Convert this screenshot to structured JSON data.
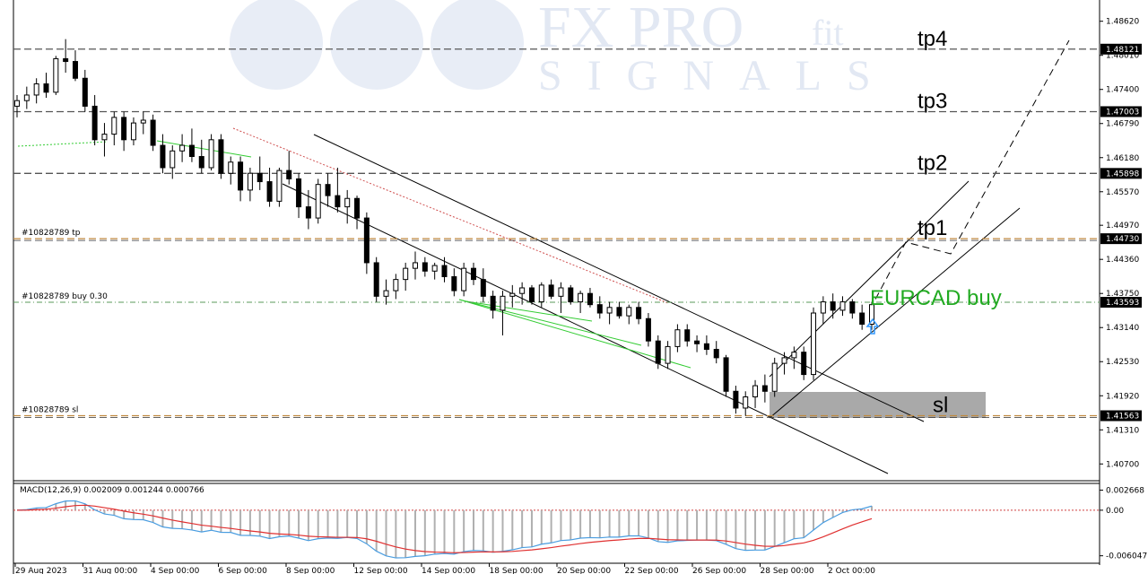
{
  "watermark": {
    "line1": "FX PRO",
    "line1b": "fit",
    "line2": "SIGNALS"
  },
  "chart_data": [
    {
      "type": "candlestick",
      "symbol": "EURCAD",
      "annotation": "EURCAD buy",
      "ylim": [
        1.404,
        1.49
      ],
      "y_ticks": [
        "1.48620",
        "1.48010",
        "1.47400",
        "1.46790",
        "1.46180",
        "1.45570",
        "1.44970",
        "1.44360",
        "1.43750",
        "1.43140",
        "1.42530",
        "1.41920",
        "1.41310",
        "1.40700"
      ],
      "x_ticks": [
        "29 Aug 2023",
        "31 Aug 00:00",
        "4 Sep 00:00",
        "6 Sep 00:00",
        "8 Sep 00:00",
        "12 Sep 00:00",
        "14 Sep 00:00",
        "18 Sep 00:00",
        "20 Sep 00:00",
        "22 Sep 00:00",
        "26 Sep 00:00",
        "28 Sep 00:00",
        "2 Oct 00:00"
      ],
      "levels": [
        {
          "label": "tp4",
          "value": 1.48121,
          "value_text": "1.48121",
          "order_text": ""
        },
        {
          "label": "tp3",
          "value": 1.47003,
          "value_text": "1.47003",
          "order_text": ""
        },
        {
          "label": "tp2",
          "value": 1.45898,
          "value_text": "1.45898",
          "order_text": ""
        },
        {
          "label": "tp1",
          "value": 1.4473,
          "value_text": "1.44730",
          "order_text": "#10828789 tp"
        },
        {
          "label": "",
          "value": 1.43593,
          "value_text": "1.43593",
          "order_text": "#10828789 buy 0.30"
        },
        {
          "label": "sl",
          "value": 1.41563,
          "value_text": "1.41563",
          "order_text": "#10828789 sl"
        }
      ],
      "candles": [
        {
          "o": 1.471,
          "h": 1.473,
          "l": 1.469,
          "c": 1.472
        },
        {
          "o": 1.472,
          "h": 1.4745,
          "l": 1.4705,
          "c": 1.473
        },
        {
          "o": 1.473,
          "h": 1.476,
          "l": 1.4715,
          "c": 1.475
        },
        {
          "o": 1.475,
          "h": 1.477,
          "l": 1.4725,
          "c": 1.4735
        },
        {
          "o": 1.4735,
          "h": 1.48,
          "l": 1.473,
          "c": 1.4795
        },
        {
          "o": 1.4795,
          "h": 1.483,
          "l": 1.477,
          "c": 1.479
        },
        {
          "o": 1.479,
          "h": 1.481,
          "l": 1.4755,
          "c": 1.476
        },
        {
          "o": 1.476,
          "h": 1.4775,
          "l": 1.47,
          "c": 1.471
        },
        {
          "o": 1.471,
          "h": 1.473,
          "l": 1.464,
          "c": 1.465
        },
        {
          "o": 1.465,
          "h": 1.468,
          "l": 1.462,
          "c": 1.466
        },
        {
          "o": 1.466,
          "h": 1.47,
          "l": 1.464,
          "c": 1.469
        },
        {
          "o": 1.469,
          "h": 1.47,
          "l": 1.463,
          "c": 1.465
        },
        {
          "o": 1.465,
          "h": 1.469,
          "l": 1.464,
          "c": 1.468
        },
        {
          "o": 1.468,
          "h": 1.47,
          "l": 1.466,
          "c": 1.4685
        },
        {
          "o": 1.4685,
          "h": 1.4695,
          "l": 1.463,
          "c": 1.464
        },
        {
          "o": 1.464,
          "h": 1.466,
          "l": 1.459,
          "c": 1.46
        },
        {
          "o": 1.46,
          "h": 1.464,
          "l": 1.458,
          "c": 1.463
        },
        {
          "o": 1.463,
          "h": 1.466,
          "l": 1.461,
          "c": 1.464
        },
        {
          "o": 1.464,
          "h": 1.467,
          "l": 1.461,
          "c": 1.462
        },
        {
          "o": 1.462,
          "h": 1.465,
          "l": 1.459,
          "c": 1.46
        },
        {
          "o": 1.46,
          "h": 1.466,
          "l": 1.4595,
          "c": 1.465
        },
        {
          "o": 1.465,
          "h": 1.466,
          "l": 1.458,
          "c": 1.459
        },
        {
          "o": 1.459,
          "h": 1.462,
          "l": 1.457,
          "c": 1.461
        },
        {
          "o": 1.461,
          "h": 1.462,
          "l": 1.454,
          "c": 1.456
        },
        {
          "o": 1.456,
          "h": 1.46,
          "l": 1.454,
          "c": 1.459
        },
        {
          "o": 1.459,
          "h": 1.462,
          "l": 1.456,
          "c": 1.4575
        },
        {
          "o": 1.4575,
          "h": 1.46,
          "l": 1.453,
          "c": 1.454
        },
        {
          "o": 1.454,
          "h": 1.46,
          "l": 1.453,
          "c": 1.4595
        },
        {
          "o": 1.4595,
          "h": 1.463,
          "l": 1.457,
          "c": 1.458
        },
        {
          "o": 1.458,
          "h": 1.459,
          "l": 1.451,
          "c": 1.453
        },
        {
          "o": 1.453,
          "h": 1.456,
          "l": 1.449,
          "c": 1.451
        },
        {
          "o": 1.451,
          "h": 1.458,
          "l": 1.45,
          "c": 1.457
        },
        {
          "o": 1.457,
          "h": 1.459,
          "l": 1.453,
          "c": 1.455
        },
        {
          "o": 1.455,
          "h": 1.46,
          "l": 1.452,
          "c": 1.453
        },
        {
          "o": 1.453,
          "h": 1.456,
          "l": 1.45,
          "c": 1.4545
        },
        {
          "o": 1.4545,
          "h": 1.455,
          "l": 1.449,
          "c": 1.451
        },
        {
          "o": 1.451,
          "h": 1.452,
          "l": 1.441,
          "c": 1.443
        },
        {
          "o": 1.443,
          "h": 1.444,
          "l": 1.436,
          "c": 1.437
        },
        {
          "o": 1.437,
          "h": 1.44,
          "l": 1.4355,
          "c": 1.438
        },
        {
          "o": 1.438,
          "h": 1.441,
          "l": 1.4365,
          "c": 1.44
        },
        {
          "o": 1.44,
          "h": 1.443,
          "l": 1.438,
          "c": 1.442
        },
        {
          "o": 1.442,
          "h": 1.445,
          "l": 1.44,
          "c": 1.443
        },
        {
          "o": 1.443,
          "h": 1.444,
          "l": 1.4405,
          "c": 1.4415
        },
        {
          "o": 1.4415,
          "h": 1.443,
          "l": 1.44,
          "c": 1.4425
        },
        {
          "o": 1.4425,
          "h": 1.444,
          "l": 1.4395,
          "c": 1.4405
        },
        {
          "o": 1.4405,
          "h": 1.442,
          "l": 1.437,
          "c": 1.438
        },
        {
          "o": 1.438,
          "h": 1.443,
          "l": 1.437,
          "c": 1.442
        },
        {
          "o": 1.442,
          "h": 1.443,
          "l": 1.439,
          "c": 1.44
        },
        {
          "o": 1.44,
          "h": 1.442,
          "l": 1.436,
          "c": 1.437
        },
        {
          "o": 1.437,
          "h": 1.438,
          "l": 1.433,
          "c": 1.4345
        },
        {
          "o": 1.4345,
          "h": 1.438,
          "l": 1.43,
          "c": 1.437
        },
        {
          "o": 1.437,
          "h": 1.439,
          "l": 1.435,
          "c": 1.4375
        },
        {
          "o": 1.4375,
          "h": 1.4395,
          "l": 1.4355,
          "c": 1.4385
        },
        {
          "o": 1.4385,
          "h": 1.439,
          "l": 1.4355,
          "c": 1.436
        },
        {
          "o": 1.436,
          "h": 1.4395,
          "l": 1.435,
          "c": 1.439
        },
        {
          "o": 1.439,
          "h": 1.44,
          "l": 1.4365,
          "c": 1.437
        },
        {
          "o": 1.437,
          "h": 1.4395,
          "l": 1.434,
          "c": 1.4385
        },
        {
          "o": 1.4385,
          "h": 1.439,
          "l": 1.4355,
          "c": 1.436
        },
        {
          "o": 1.436,
          "h": 1.438,
          "l": 1.434,
          "c": 1.4375
        },
        {
          "o": 1.4375,
          "h": 1.4385,
          "l": 1.435,
          "c": 1.4355
        },
        {
          "o": 1.4355,
          "h": 1.437,
          "l": 1.433,
          "c": 1.434
        },
        {
          "o": 1.434,
          "h": 1.436,
          "l": 1.432,
          "c": 1.435
        },
        {
          "o": 1.435,
          "h": 1.436,
          "l": 1.433,
          "c": 1.4335
        },
        {
          "o": 1.4335,
          "h": 1.4355,
          "l": 1.432,
          "c": 1.435
        },
        {
          "o": 1.435,
          "h": 1.436,
          "l": 1.432,
          "c": 1.433
        },
        {
          "o": 1.433,
          "h": 1.434,
          "l": 1.428,
          "c": 1.429
        },
        {
          "o": 1.429,
          "h": 1.43,
          "l": 1.424,
          "c": 1.425
        },
        {
          "o": 1.425,
          "h": 1.429,
          "l": 1.424,
          "c": 1.428
        },
        {
          "o": 1.428,
          "h": 1.432,
          "l": 1.427,
          "c": 1.431
        },
        {
          "o": 1.431,
          "h": 1.432,
          "l": 1.428,
          "c": 1.429
        },
        {
          "o": 1.429,
          "h": 1.43,
          "l": 1.427,
          "c": 1.4285
        },
        {
          "o": 1.4285,
          "h": 1.43,
          "l": 1.4265,
          "c": 1.4275
        },
        {
          "o": 1.4275,
          "h": 1.429,
          "l": 1.425,
          "c": 1.426
        },
        {
          "o": 1.426,
          "h": 1.4265,
          "l": 1.419,
          "c": 1.42
        },
        {
          "o": 1.42,
          "h": 1.421,
          "l": 1.416,
          "c": 1.417
        },
        {
          "o": 1.417,
          "h": 1.42,
          "l": 1.4156,
          "c": 1.419
        },
        {
          "o": 1.419,
          "h": 1.422,
          "l": 1.417,
          "c": 1.421
        },
        {
          "o": 1.421,
          "h": 1.423,
          "l": 1.418,
          "c": 1.42
        },
        {
          "o": 1.42,
          "h": 1.426,
          "l": 1.419,
          "c": 1.425
        },
        {
          "o": 1.425,
          "h": 1.427,
          "l": 1.423,
          "c": 1.426
        },
        {
          "o": 1.426,
          "h": 1.428,
          "l": 1.424,
          "c": 1.427
        },
        {
          "o": 1.427,
          "h": 1.428,
          "l": 1.422,
          "c": 1.423
        },
        {
          "o": 1.423,
          "h": 1.435,
          "l": 1.422,
          "c": 1.434
        },
        {
          "o": 1.434,
          "h": 1.437,
          "l": 1.432,
          "c": 1.436
        },
        {
          "o": 1.436,
          "h": 1.4375,
          "l": 1.433,
          "c": 1.4345
        },
        {
          "o": 1.4345,
          "h": 1.437,
          "l": 1.4335,
          "c": 1.436
        },
        {
          "o": 1.436,
          "h": 1.4365,
          "l": 1.433,
          "c": 1.434
        },
        {
          "o": 1.434,
          "h": 1.4355,
          "l": 1.431,
          "c": 1.432
        },
        {
          "o": 1.432,
          "h": 1.436,
          "l": 1.431,
          "c": 1.4355
        }
      ],
      "macd": {
        "label": "MACD(12,26,9) 0.002009 0.001244 0.000766",
        "ylim": [
          -0.0068,
          0.0032
        ],
        "y_ticks": [
          "0.002668",
          "0.00",
          "-0.006047"
        ],
        "histogram_source": "macd_minus_signal"
      }
    }
  ]
}
